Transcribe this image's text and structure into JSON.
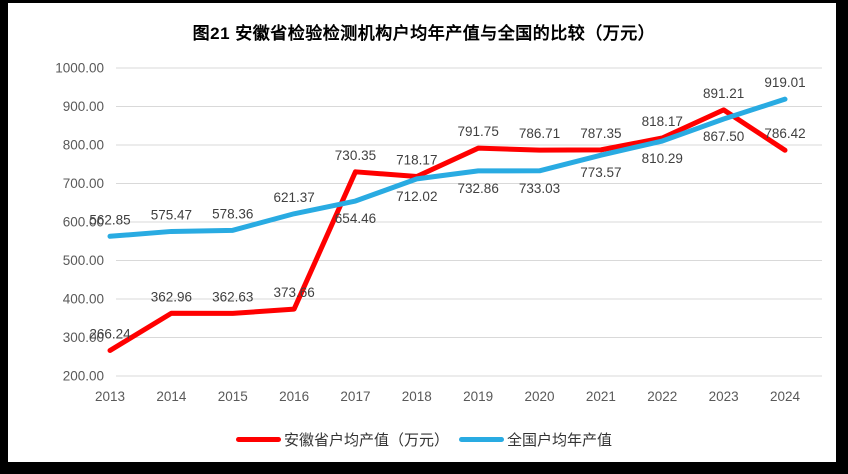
{
  "frame": {
    "background": "#000000",
    "canvas_background": "#ffffff"
  },
  "chart_data": {
    "type": "line",
    "title": "图21 安徽省检验检测机构户均年产值与全国的比较（万元）",
    "categories": [
      "2013",
      "2014",
      "2015",
      "2016",
      "2017",
      "2018",
      "2019",
      "2020",
      "2021",
      "2022",
      "2023",
      "2024"
    ],
    "series": [
      {
        "name": "安徽省户均产值（万元）",
        "color": "#FF0000",
        "values": [
          266.24,
          362.96,
          362.63,
          373.66,
          730.35,
          718.17,
          791.75,
          786.71,
          787.35,
          818.17,
          891.21,
          786.42
        ],
        "label_positions": [
          "above",
          "above",
          "above",
          "above",
          "above",
          "above",
          "above",
          "above",
          "above",
          "above",
          "above",
          "above"
        ]
      },
      {
        "name": "全国户均年产值",
        "color": "#29ABE2",
        "values": [
          562.85,
          575.47,
          578.36,
          621.37,
          654.46,
          712.02,
          732.86,
          733.03,
          773.57,
          810.29,
          867.5,
          919.01
        ],
        "label_positions": [
          "above",
          "above",
          "above",
          "above",
          "below",
          "below",
          "below",
          "below",
          "below",
          "below",
          "below",
          "above"
        ]
      }
    ],
    "ylim": [
      200,
      1000
    ],
    "ytick_step": 100,
    "y_tick_labels": [
      "200.00",
      "300.00",
      "400.00",
      "500.00",
      "600.00",
      "700.00",
      "800.00",
      "900.00",
      "1000.00"
    ],
    "grid": true,
    "legend_position": "bottom",
    "xlabel": "",
    "ylabel": "",
    "gridline_color": "#D9D9D9",
    "axis_tick_color": "#595959",
    "data_label_color": "#404040",
    "line_width": 5
  }
}
